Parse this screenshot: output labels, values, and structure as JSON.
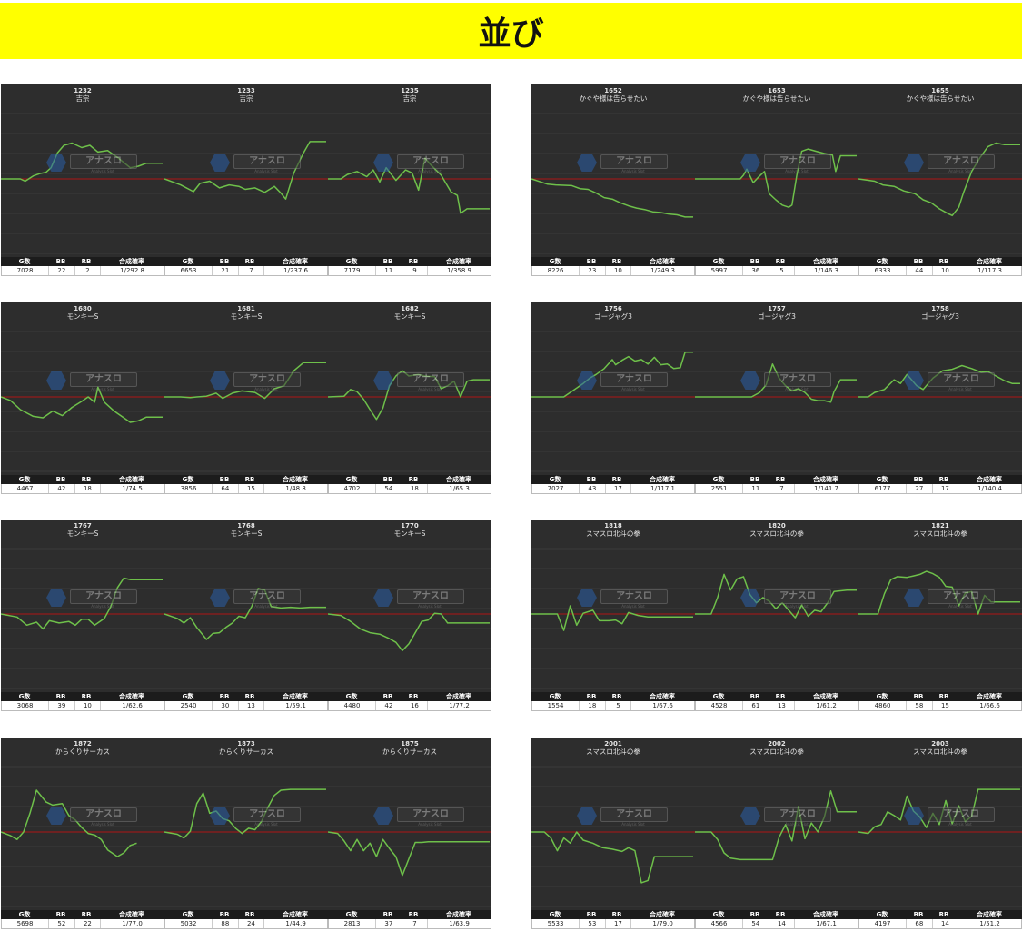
{
  "page_title": "並び",
  "icons": {
    "logo": "anaslo-logo-icon"
  },
  "colors": {
    "header_bg": "#ffff00",
    "chart_bg": "#2d2d2d",
    "zero_line": "#b01515",
    "series_line": "#6ec04a",
    "grid": "#3c3c3c"
  },
  "logo": {
    "text": "アナスロ",
    "sub": "Analysis Slot"
  },
  "stats_headers": [
    "G数",
    "BB",
    "RB",
    "合成確率"
  ],
  "chart_data": [
    {
      "number": "1232",
      "machine": "吉宗",
      "stats": [
        "7028",
        "22",
        "2",
        "1/292.8"
      ],
      "type": "line",
      "x": [
        0,
        0.12,
        0.15,
        0.2,
        0.24,
        0.28,
        0.31,
        0.35,
        0.39,
        0.44,
        0.5,
        0.55,
        0.6,
        0.66,
        0.72,
        0.8,
        0.85,
        0.9,
        1.0
      ],
      "y": [
        0,
        0,
        -300,
        400,
        700,
        900,
        1500,
        3500,
        4500,
        4800,
        4200,
        4500,
        3600,
        3800,
        2900,
        1500,
        1700,
        2100,
        2100
      ]
    },
    {
      "number": "1233",
      "machine": "吉宗",
      "stats": [
        "6653",
        "21",
        "7",
        "1/237.6"
      ],
      "type": "line",
      "x": [
        0,
        0.1,
        0.18,
        0.22,
        0.28,
        0.34,
        0.4,
        0.46,
        0.5,
        0.56,
        0.62,
        0.68,
        0.72,
        0.75,
        0.8,
        0.86,
        0.9,
        0.95,
        1.0
      ],
      "y": [
        0,
        -800,
        -1700,
        -600,
        -300,
        -1200,
        -800,
        -1000,
        -1400,
        -1200,
        -1800,
        -1000,
        -1900,
        -2700,
        800,
        3500,
        5000,
        5000,
        5000
      ]
    },
    {
      "number": "1235",
      "machine": "吉宗",
      "stats": [
        "7179",
        "11",
        "9",
        "1/358.9"
      ],
      "type": "line",
      "x": [
        0,
        0.08,
        0.12,
        0.18,
        0.24,
        0.28,
        0.32,
        0.36,
        0.42,
        0.48,
        0.52,
        0.56,
        0.6,
        0.64,
        0.7,
        0.76,
        0.8,
        0.82,
        0.86,
        0.9,
        1.0
      ],
      "y": [
        0,
        0,
        600,
        1000,
        300,
        1200,
        -400,
        1500,
        -200,
        1200,
        800,
        -1500,
        2800,
        1800,
        500,
        -1700,
        -2200,
        -4600,
        -4000,
        -4000,
        -4000
      ]
    },
    {
      "number": "1652",
      "machine": "かぐや様は告らせたい",
      "stats": [
        "8226",
        "23",
        "10",
        "1/249.3"
      ],
      "type": "line",
      "x": [
        0,
        0.1,
        0.15,
        0.25,
        0.3,
        0.35,
        0.4,
        0.45,
        0.5,
        0.55,
        0.6,
        0.65,
        0.7,
        0.75,
        0.8,
        0.85,
        0.9,
        0.95,
        1.0
      ],
      "y": [
        0,
        -700,
        -800,
        -900,
        -1300,
        -1400,
        -1900,
        -2500,
        -2700,
        -3200,
        -3600,
        -3900,
        -4100,
        -4400,
        -4500,
        -4700,
        -4800,
        -5100,
        -5100
      ]
    },
    {
      "number": "1653",
      "machine": "かぐや様は告らせたい",
      "stats": [
        "5997",
        "36",
        "5",
        "1/146.3"
      ],
      "type": "line",
      "x": [
        0,
        0.2,
        0.28,
        0.3,
        0.32,
        0.36,
        0.4,
        0.43,
        0.46,
        0.5,
        0.54,
        0.58,
        0.6,
        0.63,
        0.66,
        0.7,
        0.75,
        0.8,
        0.85,
        0.87,
        0.9,
        1.0
      ],
      "y": [
        0,
        0,
        0,
        500,
        1300,
        -500,
        400,
        1000,
        -2000,
        -2800,
        -3500,
        -3800,
        -3500,
        500,
        3700,
        4000,
        3700,
        3400,
        3200,
        1000,
        3100,
        3100
      ]
    },
    {
      "number": "1655",
      "machine": "かぐや様は告らせたい",
      "stats": [
        "6333",
        "44",
        "10",
        "1/117.3"
      ],
      "type": "line",
      "x": [
        0,
        0.1,
        0.15,
        0.22,
        0.28,
        0.35,
        0.4,
        0.45,
        0.5,
        0.55,
        0.58,
        0.62,
        0.65,
        0.7,
        0.75,
        0.8,
        0.85,
        0.9,
        0.95,
        1.0
      ],
      "y": [
        0,
        -300,
        -800,
        -1000,
        -1600,
        -2000,
        -2800,
        -3200,
        -4000,
        -4600,
        -4900,
        -3800,
        -1800,
        1000,
        2800,
        4300,
        4800,
        4600,
        4600,
        4600
      ]
    },
    {
      "number": "1680",
      "machine": "モンキーS",
      "stats": [
        "4467",
        "42",
        "18",
        "1/74.5"
      ],
      "type": "line",
      "x": [
        0,
        0.06,
        0.12,
        0.2,
        0.26,
        0.32,
        0.38,
        0.44,
        0.5,
        0.54,
        0.58,
        0.6,
        0.64,
        0.7,
        0.76,
        0.8,
        0.85,
        0.9,
        1.0
      ],
      "y": [
        0,
        -500,
        -1700,
        -2600,
        -2800,
        -1900,
        -2500,
        -1400,
        -600,
        0,
        -700,
        1300,
        -700,
        -1900,
        -2800,
        -3400,
        -3200,
        -2700,
        -2700
      ]
    },
    {
      "number": "1681",
      "machine": "モンキーS",
      "stats": [
        "3856",
        "64",
        "15",
        "1/48.8"
      ],
      "type": "line",
      "x": [
        0,
        0.1,
        0.16,
        0.2,
        0.26,
        0.32,
        0.36,
        0.42,
        0.48,
        0.56,
        0.62,
        0.68,
        0.74,
        0.8,
        0.86,
        0.9,
        1.0
      ],
      "y": [
        0,
        0,
        -100,
        0,
        100,
        500,
        -200,
        500,
        800,
        600,
        -200,
        1100,
        1500,
        3500,
        4600,
        4600,
        4600
      ]
    },
    {
      "number": "1682",
      "machine": "モンキーS",
      "stats": [
        "4702",
        "54",
        "18",
        "1/65.3"
      ],
      "type": "line",
      "x": [
        0,
        0.1,
        0.14,
        0.18,
        0.22,
        0.26,
        0.3,
        0.34,
        0.38,
        0.42,
        0.46,
        0.5,
        0.56,
        0.6,
        0.66,
        0.7,
        0.74,
        0.78,
        0.82,
        0.86,
        0.9,
        1.0
      ],
      "y": [
        0,
        100,
        1000,
        700,
        -300,
        -1700,
        -3000,
        -1500,
        1500,
        2800,
        3500,
        2800,
        3000,
        2800,
        2700,
        1100,
        1500,
        2100,
        0,
        2100,
        2300,
        2300
      ]
    },
    {
      "number": "1756",
      "machine": "ゴージャグ3",
      "stats": [
        "7027",
        "43",
        "17",
        "1/117.1"
      ],
      "type": "line",
      "x": [
        0,
        0.2,
        0.22,
        0.26,
        0.32,
        0.36,
        0.4,
        0.45,
        0.5,
        0.52,
        0.56,
        0.6,
        0.64,
        0.68,
        0.72,
        0.76,
        0.8,
        0.84,
        0.88,
        0.92,
        0.95,
        1.0
      ],
      "y": [
        0,
        0,
        300,
        900,
        1800,
        2500,
        3000,
        3800,
        5000,
        4300,
        4900,
        5400,
        4800,
        5000,
        4400,
        5300,
        4300,
        4400,
        3800,
        3900,
        6000,
        6000
      ]
    },
    {
      "number": "1757",
      "machine": "ゴージャグ3",
      "stats": [
        "2551",
        "11",
        "7",
        "1/141.7"
      ],
      "type": "line",
      "x": [
        0,
        0.25,
        0.3,
        0.35,
        0.4,
        0.44,
        0.48,
        0.52,
        0.56,
        0.6,
        0.64,
        0.68,
        0.72,
        0.76,
        0.8,
        0.84,
        0.86,
        0.9,
        0.94,
        1.0
      ],
      "y": [
        0,
        0,
        0,
        0,
        600,
        1600,
        4400,
        2500,
        1500,
        800,
        1100,
        600,
        -300,
        -500,
        -500,
        -700,
        700,
        2300,
        2300,
        2300
      ]
    },
    {
      "number": "1758",
      "machine": "ゴージャグ3",
      "stats": [
        "6177",
        "27",
        "17",
        "1/140.4"
      ],
      "type": "line",
      "x": [
        0,
        0.06,
        0.1,
        0.16,
        0.22,
        0.26,
        0.3,
        0.36,
        0.4,
        0.46,
        0.52,
        0.58,
        0.64,
        0.7,
        0.76,
        0.8,
        0.85,
        0.9,
        0.95,
        1.0
      ],
      "y": [
        0,
        0,
        600,
        1000,
        2300,
        1800,
        3000,
        1500,
        1000,
        2500,
        3500,
        3700,
        4200,
        3800,
        3300,
        3400,
        2800,
        2200,
        1800,
        1800
      ]
    },
    {
      "number": "1767",
      "machine": "モンキーS",
      "stats": [
        "3068",
        "39",
        "10",
        "1/62.6"
      ],
      "type": "line",
      "x": [
        0,
        0.1,
        0.16,
        0.22,
        0.26,
        0.3,
        0.36,
        0.42,
        0.46,
        0.5,
        0.54,
        0.58,
        0.64,
        0.68,
        0.72,
        0.76,
        0.8,
        0.84,
        0.9,
        1.0
      ],
      "y": [
        0,
        -400,
        -1500,
        -1100,
        -2000,
        -900,
        -1200,
        -1000,
        -1500,
        -700,
        -700,
        -1500,
        -600,
        1000,
        3500,
        4800,
        4600,
        4600,
        4600,
        4600
      ]
    },
    {
      "number": "1768",
      "machine": "モンキーS",
      "stats": [
        "2540",
        "30",
        "13",
        "1/59.1"
      ],
      "type": "line",
      "x": [
        0,
        0.08,
        0.12,
        0.16,
        0.2,
        0.26,
        0.3,
        0.34,
        0.38,
        0.42,
        0.46,
        0.5,
        0.54,
        0.58,
        0.62,
        0.66,
        0.72,
        0.78,
        0.84,
        0.9,
        1.0
      ],
      "y": [
        0,
        -600,
        -1200,
        -500,
        -1800,
        -3400,
        -2600,
        -2500,
        -1800,
        -1200,
        -300,
        -500,
        1000,
        3400,
        3200,
        1000,
        800,
        900,
        800,
        900,
        900
      ]
    },
    {
      "number": "1770",
      "machine": "モンキーS",
      "stats": [
        "4480",
        "42",
        "16",
        "1/77.2"
      ],
      "type": "line",
      "x": [
        0,
        0.08,
        0.14,
        0.2,
        0.26,
        0.32,
        0.38,
        0.42,
        0.46,
        0.5,
        0.54,
        0.58,
        0.62,
        0.66,
        0.7,
        0.74,
        0.8,
        0.86,
        0.9,
        1.0
      ],
      "y": [
        0,
        -200,
        -1000,
        -2000,
        -2500,
        -2700,
        -3300,
        -3800,
        -4900,
        -4000,
        -2500,
        -1000,
        -800,
        100,
        0,
        -1200,
        -1200,
        -1200,
        -1200,
        -1200
      ]
    },
    {
      "number": "1818",
      "machine": "スマスロ北斗の拳",
      "stats": [
        "1554",
        "18",
        "5",
        "1/67.6"
      ],
      "type": "line",
      "x": [
        0,
        0.1,
        0.16,
        0.2,
        0.24,
        0.28,
        0.32,
        0.38,
        0.42,
        0.48,
        0.52,
        0.56,
        0.6,
        0.66,
        0.72,
        0.8,
        0.9,
        1.0
      ],
      "y": [
        0,
        0,
        0,
        -2200,
        1100,
        -1500,
        100,
        500,
        -900,
        -900,
        -800,
        -1300,
        200,
        -200,
        -400,
        -400,
        -400,
        -400
      ]
    },
    {
      "number": "1820",
      "machine": "スマスロ北斗の拳",
      "stats": [
        "4528",
        "61",
        "13",
        "1/61.2"
      ],
      "type": "line",
      "x": [
        0,
        0.1,
        0.14,
        0.18,
        0.22,
        0.26,
        0.3,
        0.34,
        0.38,
        0.42,
        0.46,
        0.5,
        0.54,
        0.58,
        0.62,
        0.66,
        0.7,
        0.74,
        0.78,
        0.82,
        0.86,
        0.9,
        0.94,
        1.0
      ],
      "y": [
        0,
        0,
        2200,
        5300,
        3200,
        4700,
        5000,
        2600,
        1500,
        2200,
        1700,
        700,
        1500,
        500,
        -500,
        1200,
        -300,
        500,
        300,
        1500,
        3000,
        3100,
        3200,
        3200
      ]
    },
    {
      "number": "1821",
      "machine": "スマスロ北斗の拳",
      "stats": [
        "4860",
        "58",
        "15",
        "1/66.6"
      ],
      "type": "line",
      "x": [
        0,
        0.12,
        0.16,
        0.2,
        0.24,
        0.3,
        0.34,
        0.38,
        0.42,
        0.46,
        0.5,
        0.54,
        0.58,
        0.62,
        0.66,
        0.7,
        0.74,
        0.78,
        0.82,
        0.86,
        0.9,
        1.0
      ],
      "y": [
        0,
        0,
        2700,
        4600,
        5000,
        4900,
        5100,
        5300,
        5700,
        5400,
        4900,
        3700,
        3600,
        1100,
        2800,
        3000,
        0,
        2500,
        1600,
        1600,
        1600,
        1600
      ]
    },
    {
      "number": "1872",
      "machine": "からくりサーカス",
      "stats": [
        "5698",
        "52",
        "22",
        "1/77.0"
      ],
      "type": "line",
      "x": [
        0,
        0.06,
        0.1,
        0.14,
        0.18,
        0.22,
        0.28,
        0.32,
        0.38,
        0.42,
        0.46,
        0.5,
        0.54,
        0.58,
        0.62,
        0.66,
        0.72,
        0.76,
        0.8,
        0.84
      ],
      "y": [
        0,
        -500,
        -1000,
        0,
        2500,
        5600,
        4000,
        3600,
        3800,
        2200,
        1600,
        600,
        -200,
        -400,
        -1000,
        -2400,
        -3300,
        -2800,
        -1800,
        -1500
      ]
    },
    {
      "number": "1873",
      "machine": "からくりサーカス",
      "stats": [
        "5032",
        "88",
        "24",
        "1/44.9"
      ],
      "type": "line",
      "x": [
        0,
        0.08,
        0.12,
        0.16,
        0.2,
        0.24,
        0.28,
        0.32,
        0.36,
        0.4,
        0.44,
        0.48,
        0.52,
        0.56,
        0.6,
        0.64,
        0.68,
        0.72,
        0.78,
        0.84,
        0.9,
        1.0
      ],
      "y": [
        0,
        -300,
        -800,
        100,
        3800,
        5200,
        2500,
        2800,
        1800,
        1500,
        500,
        -200,
        500,
        300,
        1400,
        3300,
        4900,
        5600,
        5700,
        5700,
        5700,
        5700
      ]
    },
    {
      "number": "1875",
      "machine": "からくりサーカス",
      "stats": [
        "2813",
        "37",
        "7",
        "1/63.9"
      ],
      "type": "line",
      "x": [
        0,
        0.06,
        0.1,
        0.14,
        0.18,
        0.22,
        0.26,
        0.3,
        0.34,
        0.38,
        0.42,
        0.46,
        0.5,
        0.54,
        0.58,
        0.62,
        0.66,
        0.72,
        0.8,
        0.9,
        1.0
      ],
      "y": [
        0,
        -200,
        -1200,
        -2500,
        -1000,
        -2500,
        -1500,
        -3300,
        -1000,
        -2200,
        -3300,
        -5800,
        -3600,
        -1400,
        -1400,
        -1300,
        -1300,
        -1300,
        -1300,
        -1300,
        -1300
      ]
    },
    {
      "number": "2001",
      "machine": "スマスロ北斗の拳",
      "stats": [
        "5533",
        "53",
        "17",
        "1/79.0"
      ],
      "type": "line",
      "x": [
        0,
        0.08,
        0.12,
        0.16,
        0.2,
        0.24,
        0.28,
        0.32,
        0.38,
        0.44,
        0.5,
        0.56,
        0.6,
        0.64,
        0.68,
        0.72,
        0.76,
        0.8,
        0.84,
        0.9,
        1.0
      ],
      "y": [
        0,
        0,
        -800,
        -2500,
        -800,
        -1500,
        0,
        -1100,
        -1500,
        -2100,
        -2300,
        -2600,
        -2100,
        -2500,
        -6800,
        -6500,
        -3300,
        -3300,
        -3300,
        -3300,
        -3300
      ]
    },
    {
      "number": "2002",
      "machine": "スマスロ北斗の拳",
      "stats": [
        "4566",
        "54",
        "14",
        "1/67.1"
      ],
      "type": "line",
      "x": [
        0,
        0.1,
        0.14,
        0.18,
        0.22,
        0.28,
        0.34,
        0.4,
        0.44,
        0.48,
        0.52,
        0.56,
        0.6,
        0.64,
        0.68,
        0.72,
        0.76,
        0.8,
        0.84,
        0.88,
        0.92,
        1.0
      ],
      "y": [
        0,
        0,
        -1000,
        -2800,
        -3500,
        -3700,
        -3700,
        -3700,
        -3700,
        -3700,
        -700,
        1000,
        -1200,
        3400,
        -900,
        1200,
        0,
        2000,
        5500,
        2700,
        2700,
        2700
      ]
    },
    {
      "number": "2003",
      "machine": "スマスロ北斗の拳",
      "stats": [
        "4197",
        "68",
        "14",
        "1/51.2"
      ],
      "type": "line",
      "x": [
        0,
        0.06,
        0.1,
        0.14,
        0.18,
        0.22,
        0.26,
        0.3,
        0.34,
        0.38,
        0.42,
        0.46,
        0.5,
        0.54,
        0.58,
        0.62,
        0.66,
        0.7,
        0.74,
        0.78,
        0.84,
        0.9,
        1.0
      ],
      "y": [
        0,
        -200,
        700,
        1000,
        2700,
        2200,
        1600,
        4800,
        2800,
        2000,
        600,
        2500,
        1000,
        4200,
        1100,
        3500,
        1400,
        2100,
        5700,
        5700,
        5700,
        5700,
        5700
      ]
    }
  ]
}
